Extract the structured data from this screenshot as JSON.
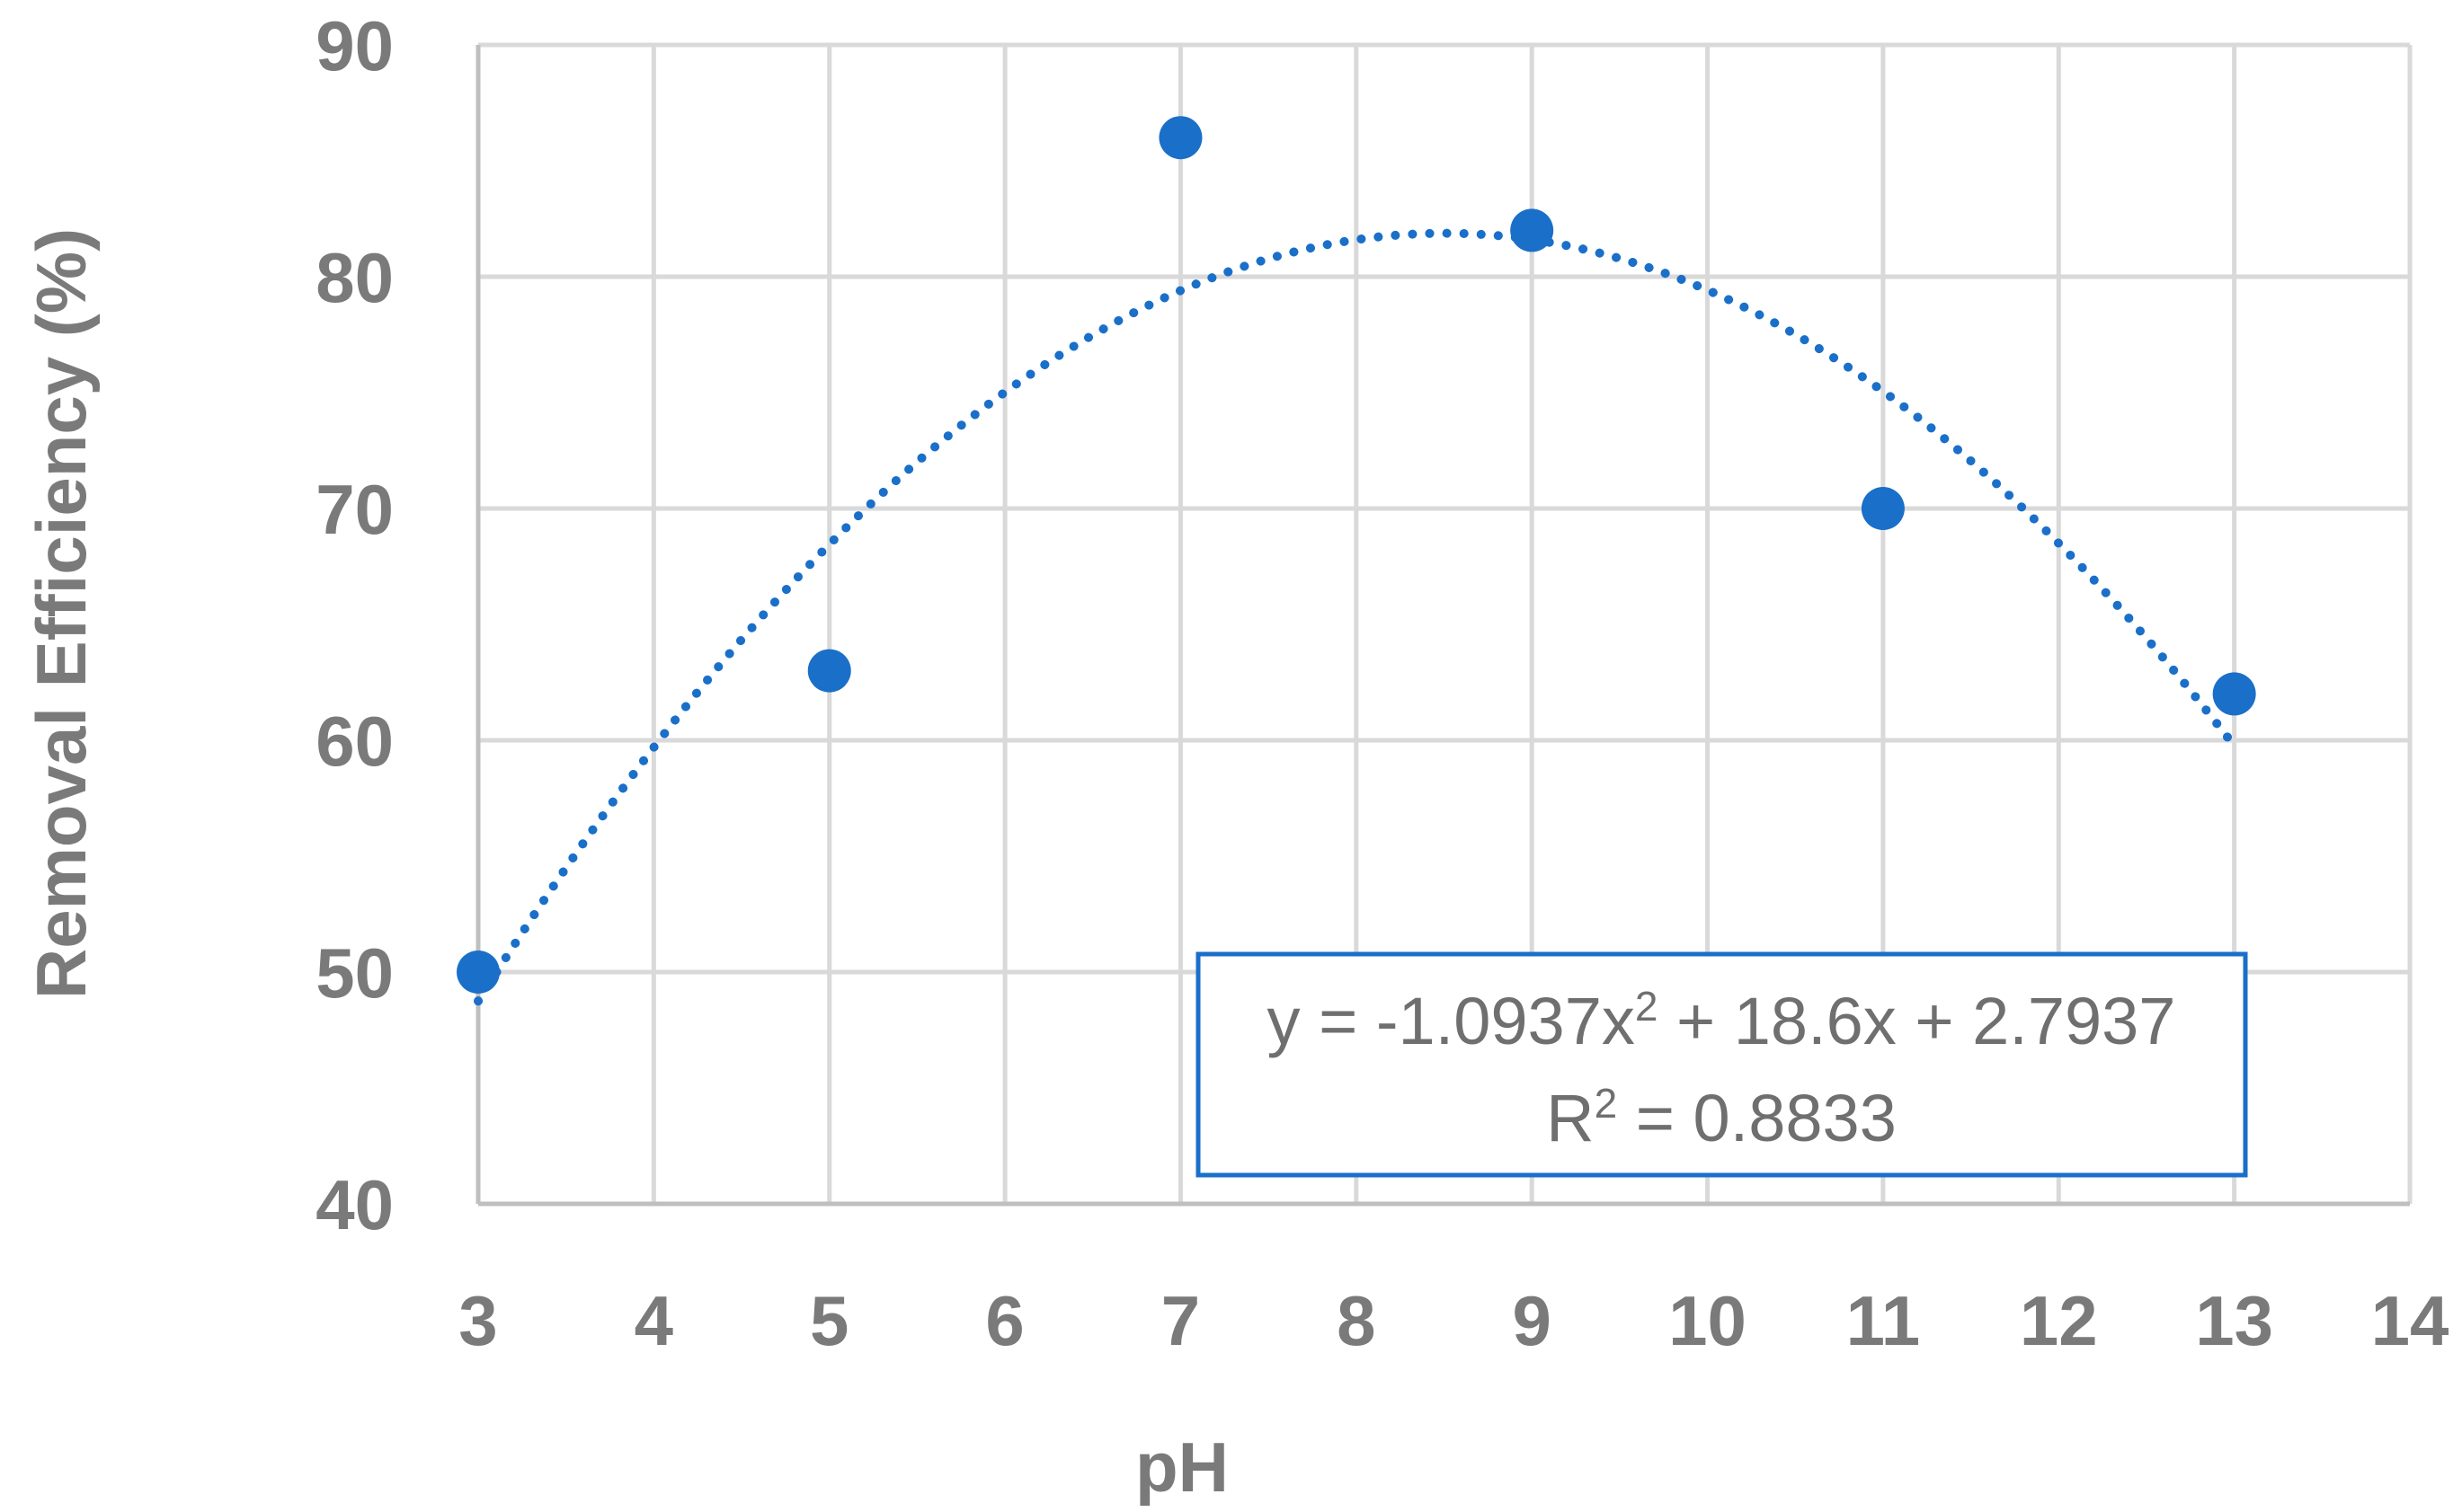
{
  "chart_data": {
    "type": "scatter",
    "xlabel": "pH",
    "ylabel": "Removal Efficiency (%)",
    "xlim": [
      3,
      14
    ],
    "ylim": [
      40,
      90
    ],
    "x_ticks": [
      3,
      4,
      5,
      6,
      7,
      8,
      9,
      10,
      11,
      12,
      13,
      14
    ],
    "y_ticks": [
      40,
      50,
      60,
      70,
      80,
      90
    ],
    "grid": true,
    "series": [
      {
        "x": [
          3,
          5,
          7,
          9,
          11,
          13
        ],
        "y": [
          50,
          63,
          86,
          82,
          70,
          62
        ],
        "color": "#1a6fc9"
      }
    ],
    "trendline": {
      "type": "polynomial-2",
      "style": "dotted",
      "color": "#1a6fc9",
      "coefficients": [
        -1.0937,
        18.6,
        2.7937
      ],
      "x_range": [
        3,
        13
      ]
    },
    "annotation": {
      "equation_prefix": "y = -1.0937x",
      "equation_sup": "2",
      "equation_suffix": " + 18.6x + 2.7937",
      "r2_prefix": "R",
      "r2_sup": "2",
      "r2_suffix": " = 0.8833",
      "border_color": "#1a6fc9"
    }
  }
}
